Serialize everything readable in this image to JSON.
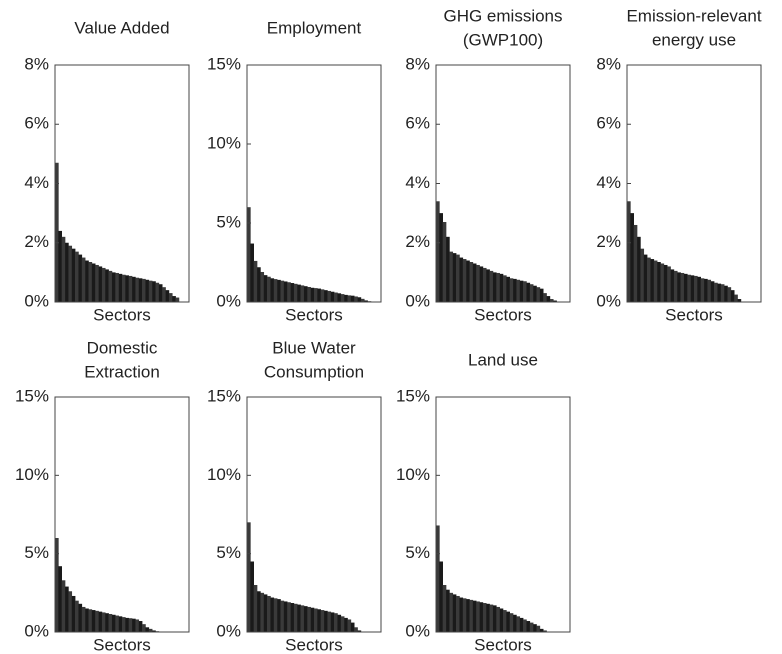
{
  "chart_data": [
    {
      "type": "bar",
      "title": [
        "Value Added"
      ],
      "xlabel": "Sectors",
      "color": "#1a1a1a",
      "ylim": [
        0,
        8
      ],
      "yticks": [
        {
          "value": 0,
          "label": "0%"
        },
        {
          "value": 2,
          "label": "2%"
        },
        {
          "value": 4,
          "label": "4%"
        },
        {
          "value": 6,
          "label": "6%"
        },
        {
          "value": 8,
          "label": "8%"
        }
      ],
      "values": [
        4.7,
        2.4,
        2.2,
        2.0,
        1.9,
        1.8,
        1.7,
        1.6,
        1.5,
        1.4,
        1.35,
        1.3,
        1.25,
        1.2,
        1.15,
        1.1,
        1.05,
        1.0,
        0.98,
        0.95,
        0.92,
        0.9,
        0.88,
        0.85,
        0.82,
        0.8,
        0.78,
        0.75,
        0.72,
        0.7,
        0.65,
        0.6,
        0.5,
        0.4,
        0.3,
        0.2,
        0.15,
        0,
        0,
        0
      ]
    },
    {
      "type": "bar",
      "title": [
        "Employment"
      ],
      "xlabel": "Sectors",
      "color": "#1a1a1a",
      "ylim": [
        0,
        15
      ],
      "yticks": [
        {
          "value": 0,
          "label": "0%"
        },
        {
          "value": 5,
          "label": "5%"
        },
        {
          "value": 10,
          "label": "10%"
        },
        {
          "value": 15,
          "label": "15%"
        }
      ],
      "values": [
        6.0,
        3.7,
        2.6,
        2.2,
        1.9,
        1.7,
        1.6,
        1.5,
        1.45,
        1.4,
        1.35,
        1.3,
        1.25,
        1.2,
        1.15,
        1.1,
        1.05,
        1.0,
        0.95,
        0.9,
        0.88,
        0.85,
        0.8,
        0.75,
        0.7,
        0.65,
        0.6,
        0.55,
        0.5,
        0.45,
        0.42,
        0.4,
        0.35,
        0.3,
        0.2,
        0.1,
        0.05,
        0,
        0,
        0
      ]
    },
    {
      "type": "bar",
      "title": [
        "GHG emissions",
        "(GWP100)"
      ],
      "xlabel": "Sectors",
      "color": "#1a1a1a",
      "ylim": [
        0,
        8
      ],
      "yticks": [
        {
          "value": 0,
          "label": "0%"
        },
        {
          "value": 2,
          "label": "2%"
        },
        {
          "value": 4,
          "label": "4%"
        },
        {
          "value": 6,
          "label": "6%"
        },
        {
          "value": 8,
          "label": "8%"
        }
      ],
      "values": [
        3.4,
        3.0,
        2.7,
        2.2,
        1.7,
        1.65,
        1.6,
        1.5,
        1.45,
        1.4,
        1.35,
        1.3,
        1.25,
        1.2,
        1.15,
        1.1,
        1.05,
        1.0,
        0.98,
        0.95,
        0.9,
        0.85,
        0.8,
        0.78,
        0.75,
        0.72,
        0.7,
        0.65,
        0.6,
        0.55,
        0.5,
        0.45,
        0.3,
        0.2,
        0.1,
        0.05,
        0,
        0,
        0,
        0
      ]
    },
    {
      "type": "bar",
      "title": [
        "Emission-relevant",
        "energy use"
      ],
      "xlabel": "Sectors",
      "color": "#1a1a1a",
      "ylim": [
        0,
        8
      ],
      "yticks": [
        {
          "value": 0,
          "label": "0%"
        },
        {
          "value": 2,
          "label": "2%"
        },
        {
          "value": 4,
          "label": "4%"
        },
        {
          "value": 6,
          "label": "6%"
        },
        {
          "value": 8,
          "label": "8%"
        }
      ],
      "values": [
        3.4,
        3.0,
        2.6,
        2.2,
        1.8,
        1.6,
        1.5,
        1.45,
        1.4,
        1.35,
        1.3,
        1.25,
        1.2,
        1.1,
        1.05,
        1.0,
        0.98,
        0.95,
        0.92,
        0.9,
        0.88,
        0.85,
        0.8,
        0.78,
        0.75,
        0.7,
        0.65,
        0.62,
        0.6,
        0.55,
        0.5,
        0.4,
        0.25,
        0.1,
        0,
        0,
        0,
        0,
        0,
        0
      ]
    },
    {
      "type": "bar",
      "title": [
        "Domestic",
        "Extraction"
      ],
      "xlabel": "Sectors",
      "color": "#1a1a1a",
      "ylim": [
        0,
        15
      ],
      "yticks": [
        {
          "value": 0,
          "label": "0%"
        },
        {
          "value": 5,
          "label": "5%"
        },
        {
          "value": 10,
          "label": "10%"
        },
        {
          "value": 15,
          "label": "15%"
        }
      ],
      "values": [
        6.0,
        4.2,
        3.3,
        2.9,
        2.6,
        2.3,
        2.0,
        1.8,
        1.6,
        1.5,
        1.45,
        1.4,
        1.35,
        1.3,
        1.25,
        1.2,
        1.15,
        1.1,
        1.05,
        1.0,
        0.95,
        0.9,
        0.88,
        0.85,
        0.8,
        0.7,
        0.5,
        0.3,
        0.2,
        0.1,
        0.05,
        0,
        0,
        0,
        0,
        0,
        0,
        0,
        0,
        0
      ]
    },
    {
      "type": "bar",
      "title": [
        "Blue Water",
        "Consumption"
      ],
      "xlabel": "Sectors",
      "color": "#1a1a1a",
      "ylim": [
        0,
        15
      ],
      "yticks": [
        {
          "value": 0,
          "label": "0%"
        },
        {
          "value": 5,
          "label": "5%"
        },
        {
          "value": 10,
          "label": "10%"
        },
        {
          "value": 15,
          "label": "15%"
        }
      ],
      "values": [
        7.0,
        4.5,
        3.0,
        2.6,
        2.5,
        2.4,
        2.3,
        2.2,
        2.15,
        2.1,
        2.0,
        1.95,
        1.9,
        1.85,
        1.8,
        1.75,
        1.7,
        1.65,
        1.6,
        1.55,
        1.5,
        1.45,
        1.4,
        1.35,
        1.3,
        1.25,
        1.2,
        1.1,
        1.0,
        0.9,
        0.8,
        0.6,
        0.3,
        0.1,
        0,
        0,
        0,
        0,
        0,
        0
      ]
    },
    {
      "type": "bar",
      "title": [
        "Land use"
      ],
      "xlabel": "Sectors",
      "color": "#1a1a1a",
      "ylim": [
        0,
        15
      ],
      "yticks": [
        {
          "value": 0,
          "label": "0%"
        },
        {
          "value": 5,
          "label": "5%"
        },
        {
          "value": 10,
          "label": "10%"
        },
        {
          "value": 15,
          "label": "15%"
        }
      ],
      "values": [
        6.8,
        4.5,
        3.0,
        2.7,
        2.5,
        2.4,
        2.3,
        2.2,
        2.15,
        2.1,
        2.05,
        2.0,
        1.95,
        1.9,
        1.85,
        1.8,
        1.75,
        1.7,
        1.6,
        1.5,
        1.4,
        1.3,
        1.2,
        1.1,
        1.0,
        0.9,
        0.8,
        0.7,
        0.6,
        0.5,
        0.4,
        0.2,
        0.1,
        0,
        0,
        0,
        0,
        0,
        0,
        0
      ]
    }
  ]
}
